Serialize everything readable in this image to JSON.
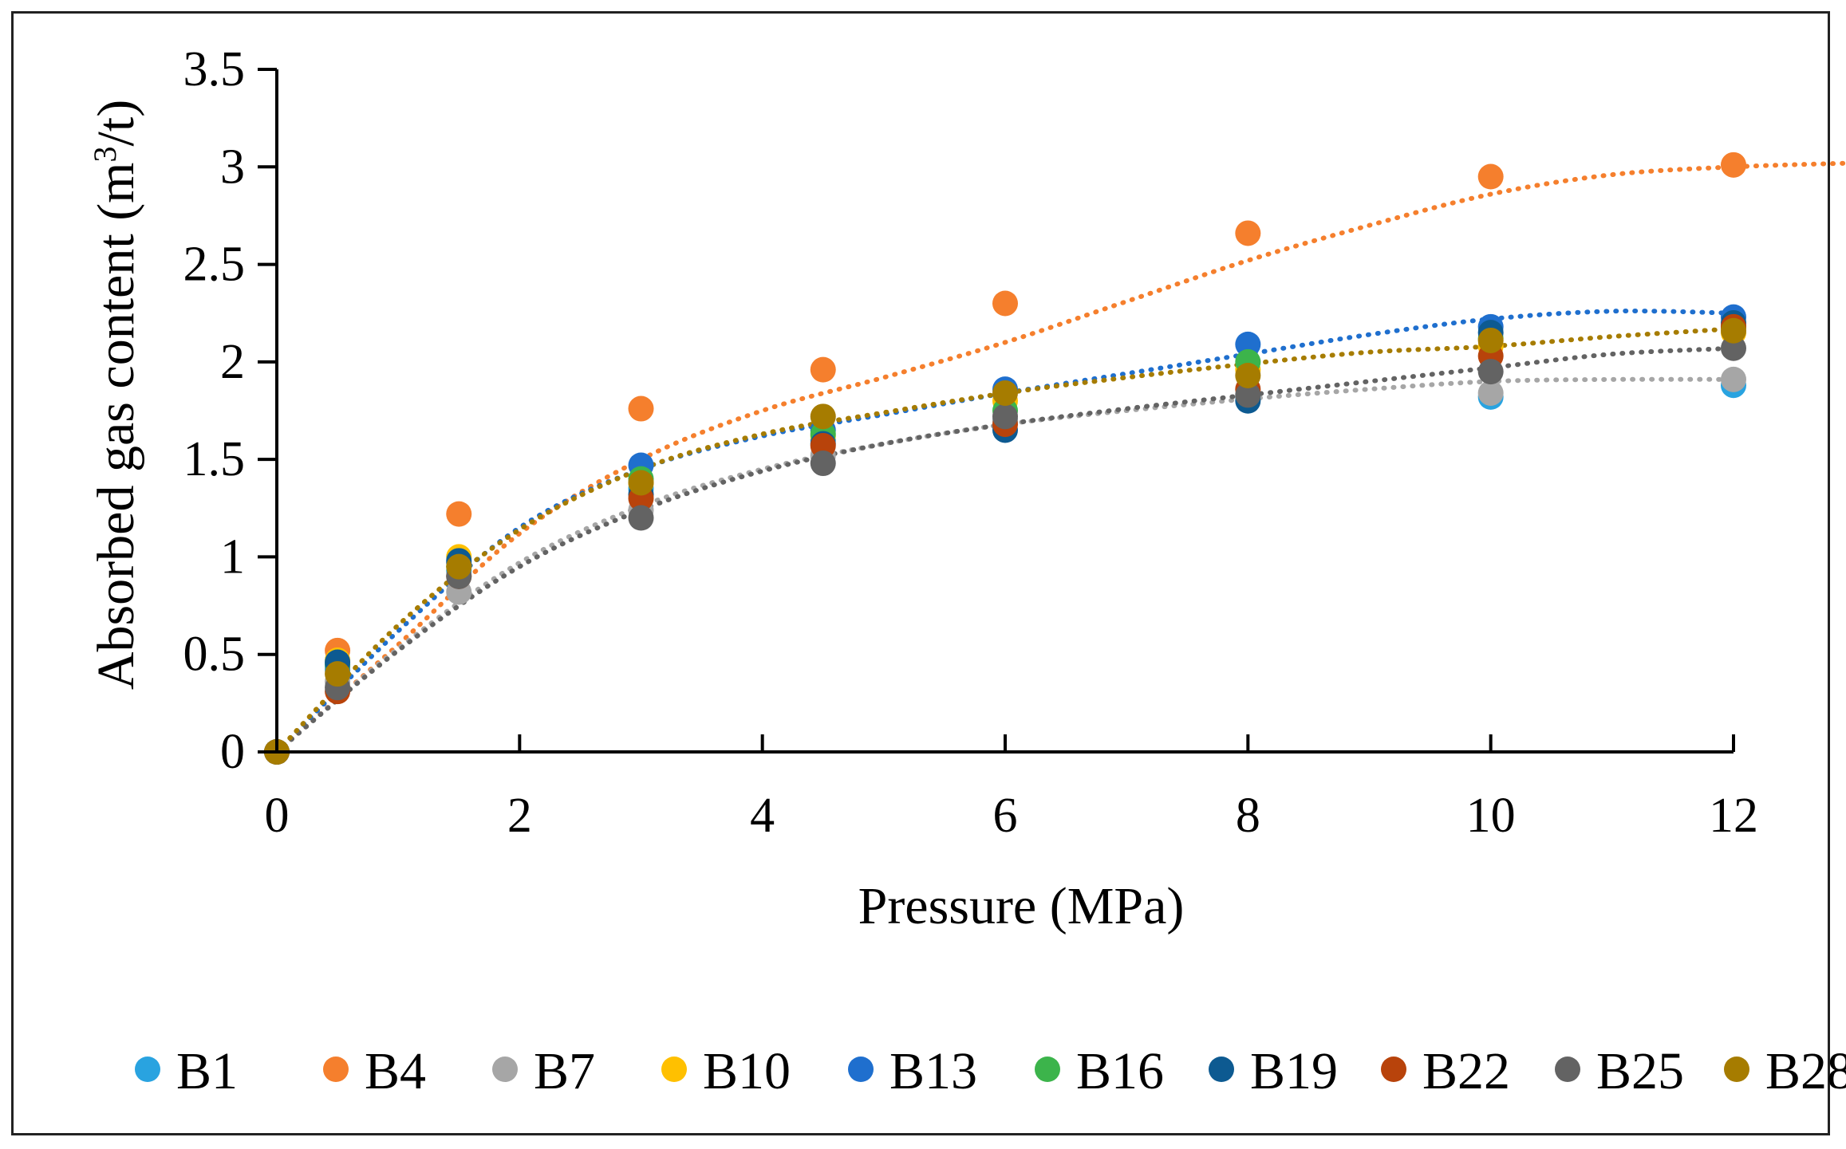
{
  "chart_data": {
    "type": "scatter",
    "xlabel": "Pressure (MPa)",
    "ylabel_main": "Absorbed gas content (m",
    "ylabel_sup": "3",
    "ylabel_end": "/t)",
    "xlim": [
      0,
      12
    ],
    "ylim": [
      0,
      3.5
    ],
    "x_ticks": [
      "0",
      "2",
      "4",
      "6",
      "8",
      "10",
      "12"
    ],
    "y_ticks": [
      "0",
      "0.5",
      "1",
      "1.5",
      "2",
      "2.5",
      "3",
      "3.5"
    ],
    "legend_position": "bottom",
    "grid": false,
    "trendline_style": "dotted",
    "series": [
      {
        "name": "B1",
        "color": "#29a3e0",
        "x": [
          0,
          0.5,
          1.5,
          3,
          4.5,
          6,
          8,
          10,
          12
        ],
        "y": [
          0,
          0.42,
          0.93,
          1.35,
          1.6,
          1.7,
          1.82,
          1.82,
          1.88
        ]
      },
      {
        "name": "B4",
        "color": "#f57f2d",
        "x": [
          0,
          0.5,
          1.5,
          3,
          4.5,
          6,
          8,
          10,
          12
        ],
        "y": [
          0,
          0.52,
          1.22,
          1.76,
          1.96,
          2.3,
          2.66,
          2.95,
          3.01
        ],
        "trend": [
          0,
          0.55,
          1.12,
          1.5,
          1.75,
          1.92,
          2.1,
          2.31,
          2.52,
          2.7,
          2.86,
          2.96,
          3.0,
          3.02
        ]
      },
      {
        "name": "B7",
        "color": "#a6a6a6",
        "x": [
          0,
          0.5,
          1.5,
          3,
          4.5,
          6,
          8,
          10,
          12
        ],
        "y": [
          0,
          0.36,
          0.82,
          1.24,
          1.52,
          1.7,
          1.82,
          1.84,
          1.91
        ],
        "trend": [
          0,
          0.53,
          0.97,
          1.26,
          1.45,
          1.58,
          1.68,
          1.75,
          1.81,
          1.86,
          1.9,
          1.91,
          1.91
        ]
      },
      {
        "name": "B10",
        "color": "#ffc000",
        "x": [
          0,
          0.5,
          1.5,
          3,
          4.5,
          6,
          8,
          10,
          12
        ],
        "y": [
          0,
          0.47,
          1.0,
          1.38,
          1.62,
          1.8,
          1.96,
          2.08,
          2.15
        ]
      },
      {
        "name": "B13",
        "color": "#1f6fce",
        "x": [
          0,
          0.5,
          1.5,
          3,
          4.5,
          6,
          8,
          10,
          12
        ],
        "y": [
          0,
          0.44,
          0.97,
          1.47,
          1.65,
          1.86,
          2.09,
          2.18,
          2.23
        ],
        "trend": [
          0,
          0.62,
          1.15,
          1.45,
          1.62,
          1.73,
          1.84,
          1.94,
          2.04,
          2.14,
          2.22,
          2.26,
          2.25
        ]
      },
      {
        "name": "B16",
        "color": "#3cb44b",
        "x": [
          0,
          0.5,
          1.5,
          3,
          4.5,
          6,
          8,
          10,
          12
        ],
        "y": [
          0,
          0.45,
          0.95,
          1.4,
          1.63,
          1.75,
          2.0,
          2.12,
          2.18
        ]
      },
      {
        "name": "B19",
        "color": "#0d5a91",
        "x": [
          0,
          0.5,
          1.5,
          3,
          4.5,
          6,
          8,
          10,
          12
        ],
        "y": [
          0,
          0.46,
          0.98,
          1.32,
          1.58,
          1.65,
          1.8,
          2.15,
          2.2
        ]
      },
      {
        "name": "B22",
        "color": "#b8430b",
        "x": [
          0,
          0.5,
          1.5,
          3,
          4.5,
          6,
          8,
          10,
          12
        ],
        "y": [
          0,
          0.31,
          0.9,
          1.3,
          1.57,
          1.68,
          1.86,
          2.03,
          2.18
        ]
      },
      {
        "name": "B25",
        "color": "#636363",
        "x": [
          0,
          0.5,
          1.5,
          3,
          4.5,
          6,
          8,
          10,
          12
        ],
        "y": [
          0,
          0.33,
          0.9,
          1.2,
          1.48,
          1.72,
          1.83,
          1.95,
          2.07
        ],
        "trend": [
          0,
          0.52,
          0.95,
          1.24,
          1.44,
          1.58,
          1.68,
          1.76,
          1.83,
          1.9,
          1.97,
          2.04,
          2.07
        ]
      },
      {
        "name": "B28",
        "color": "#a67c00",
        "x": [
          0,
          0.5,
          1.5,
          3,
          4.5,
          6,
          8,
          10,
          12
        ],
        "y": [
          0,
          0.4,
          0.95,
          1.38,
          1.72,
          1.84,
          1.93,
          2.11,
          2.16
        ],
        "trend": [
          0,
          0.65,
          1.14,
          1.45,
          1.63,
          1.74,
          1.84,
          1.92,
          1.99,
          2.05,
          2.08,
          2.13,
          2.17
        ]
      }
    ]
  }
}
